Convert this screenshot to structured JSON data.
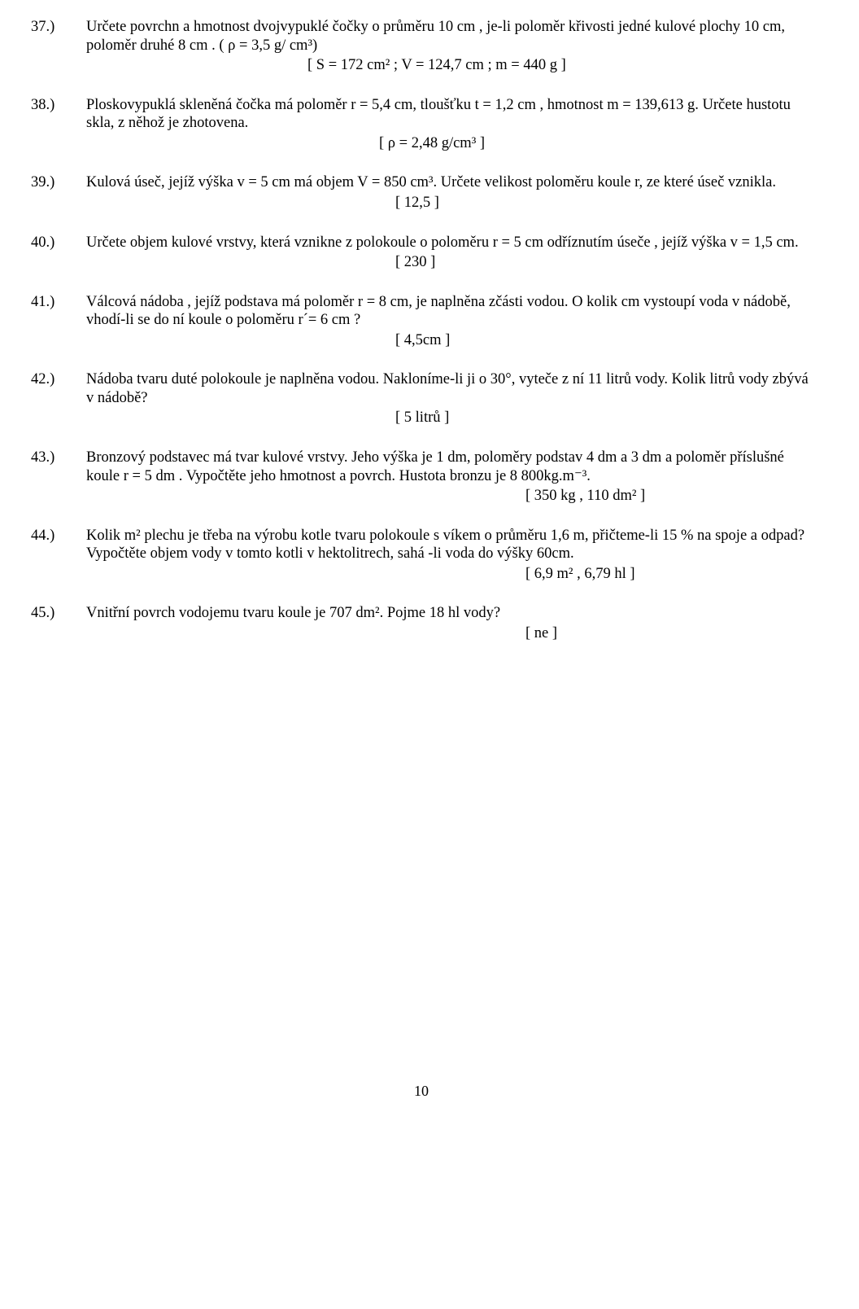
{
  "problems": [
    {
      "num": "37.)",
      "text": "Určete povrchn a hmotnost dvojvypuklé čočky o průměru  10 cm , je-li poloměr křivosti jedné kulové plochy 10 cm, poloměr druhé 8 cm .  ( ρ = 3,5 g/ cm³)",
      "answer": "[  S = 172 cm² ; V = 124,7 cm ; m = 440 g   ]",
      "answerClass": "answer-right"
    },
    {
      "num": "38.)",
      "text": "Ploskovypuklá skleněná čočka má poloměr r = 5,4 cm, tloušťku t = 1,2 cm , hmotnost m = 139,613 g. Určete hustotu skla, z něhož je zhotovena.",
      "answer": "[ ρ = 2,48 g/cm³   ]",
      "answerClass": "answer-indent"
    },
    {
      "num": "39.)",
      "text": "Kulová úseč, jejíž výška v = 5 cm má objem V = 850 cm³. Určete velikost poloměru koule r, ze které úseč vznikla.",
      "answer": "[ 12,5  ]",
      "answerClass": "answer-indent2"
    },
    {
      "num": "40.)",
      "text": "Určete objem kulové vrstvy, která vznikne z polokoule o poloměru r = 5 cm  odříznutím úseče , jejíž výška v = 1,5 cm.",
      "answer": "[ 230  ]",
      "answerClass": "answer-indent2"
    },
    {
      "num": "41.)",
      "text": "Válcová nádoba , jejíž podstava má poloměr r = 8 cm, je naplněna zčásti vodou. O kolik cm vystoupí voda v nádobě, vhodí-li se do ní koule o poloměru r´= 6 cm ?",
      "answer": "[ 4,5cm  ]",
      "answerClass": "answer-indent2"
    },
    {
      "num": "42.)",
      "text": "Nádoba tvaru duté polokoule je naplněna vodou. Nakloníme-li ji o 30°, vyteče z ní 11 litrů vody. Kolik litrů vody zbývá v nádobě?",
      "answer": "[  5 litrů ]",
      "answerClass": "answer-indent2"
    },
    {
      "num": "43.)",
      "text": "Bronzový podstavec má tvar kulové vrstvy. Jeho výška je 1 dm, poloměry podstav 4 dm a 3 dm a poloměr příslušné koule r = 5 dm . Vypočtěte jeho hmotnost a povrch. Hustota bronzu je 8 800kg.m⁻³.",
      "answer": "[ 350 kg , 110 dm² ]",
      "answerClass": "answer-far"
    },
    {
      "num": "44.)",
      "text": "Kolik m² plechu je třeba na výrobu kotle tvaru polokoule s víkem o průměru 1,6 m, přičteme-li 15 % na spoje a odpad? Vypočtěte objem vody v tomto kotli v hektolitrech, sahá -li voda do výšky 60cm.",
      "answer": "[ 6,9 m² , 6,79 hl ]",
      "answerClass": "answer-far"
    },
    {
      "num": "45.)",
      "text": "Vnitřní povrch vodojemu tvaru koule je 707 dm². Pojme 18 hl vody?",
      "answer": "[ ne ]",
      "answerClass": "answer-far"
    }
  ],
  "pagenum": "10"
}
